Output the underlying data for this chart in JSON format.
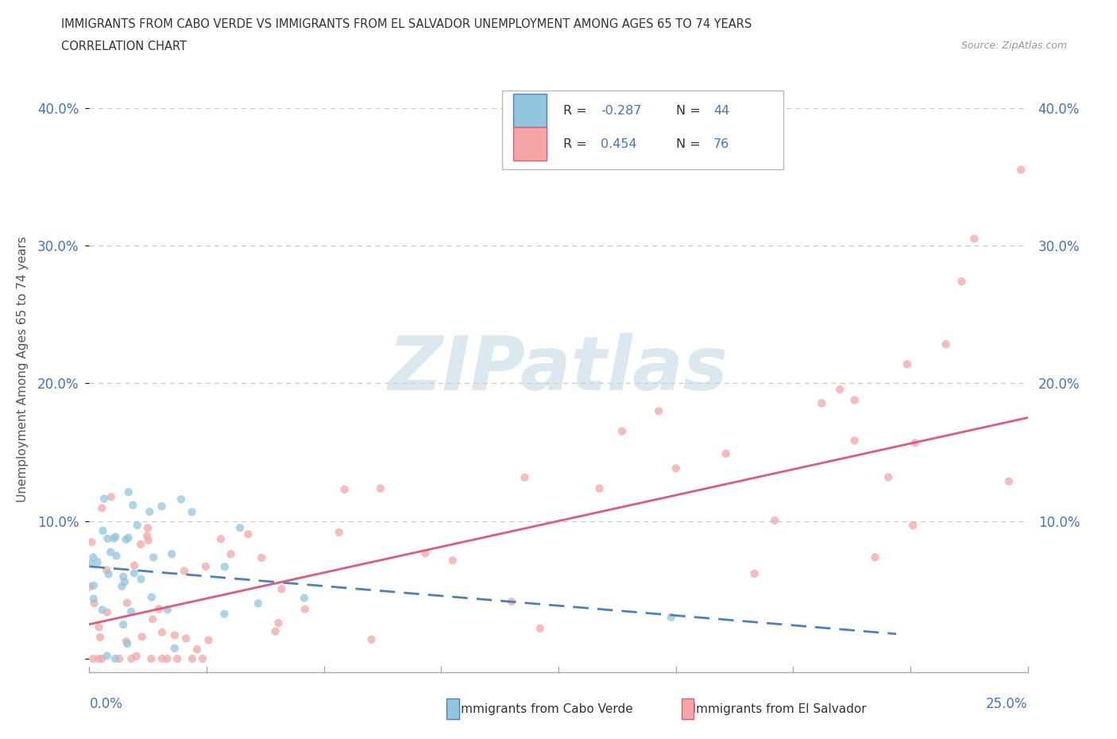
{
  "title_line1": "IMMIGRANTS FROM CABO VERDE VS IMMIGRANTS FROM EL SALVADOR UNEMPLOYMENT AMONG AGES 65 TO 74 YEARS",
  "title_line2": "CORRELATION CHART",
  "source_text": "Source: ZipAtlas.com",
  "ylabel": "Unemployment Among Ages 65 to 74 years",
  "xlim": [
    0.0,
    0.25
  ],
  "ylim": [
    -0.01,
    0.43
  ],
  "yticks": [
    0.0,
    0.1,
    0.2,
    0.3,
    0.4
  ],
  "ytick_labels": [
    "",
    "10.0%",
    "20.0%",
    "30.0%",
    "40.0%"
  ],
  "cabo_verde_color": "#92c5de",
  "el_salvador_color": "#f4a6a6",
  "cabo_verde_R": -0.287,
  "cabo_verde_N": 44,
  "el_salvador_R": 0.454,
  "el_salvador_N": 76,
  "cabo_verde_trend_color": "#4e7fbd",
  "el_salvador_trend_color": "#e05a7a",
  "label_color": "#4472c4",
  "grid_color": "#cccccc",
  "spine_color": "#aaaaaa",
  "background_color": "#ffffff",
  "watermark_color": "#dce8f0",
  "cv_trend_x": [
    0.0,
    0.215
  ],
  "cv_trend_y": [
    0.067,
    0.018
  ],
  "es_trend_x": [
    0.0,
    0.25
  ],
  "es_trend_y": [
    0.025,
    0.175
  ]
}
